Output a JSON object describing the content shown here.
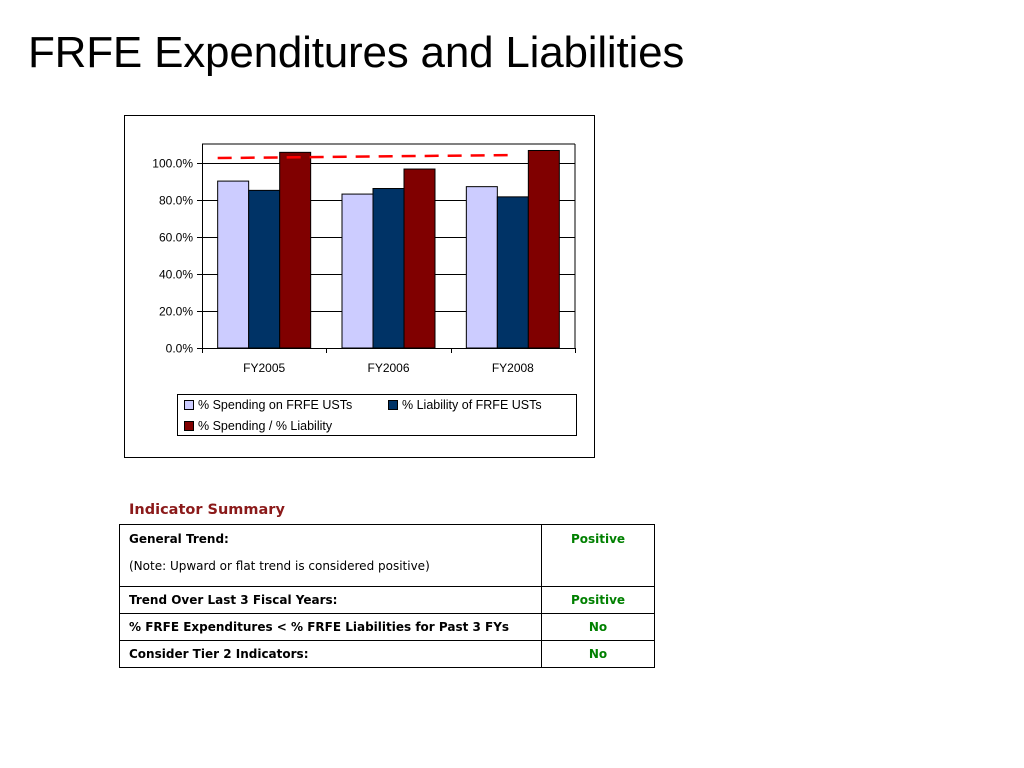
{
  "slide": {
    "title": "FRFE Expenditures and Liabilities"
  },
  "chart_data": {
    "type": "bar",
    "categories": [
      "FY2005",
      "FY2006",
      "FY2008"
    ],
    "series": [
      {
        "name": "% Spending on FRFE USTs",
        "values": [
          90.0,
          83.0,
          87.0
        ],
        "color": "#ccccff"
      },
      {
        "name": "% Liability of FRFE USTs",
        "values": [
          85.0,
          86.0,
          81.5
        ],
        "color": "#003366"
      },
      {
        "name": "% Spending / % Liability",
        "values": [
          105.5,
          96.5,
          106.5
        ],
        "color": "#800000"
      }
    ],
    "reference_line": {
      "value": 103.5,
      "style": "dashed",
      "color": "#ff0000"
    },
    "ylim": [
      0,
      110
    ],
    "yticks": [
      "0.0%",
      "20.0%",
      "40.0%",
      "60.0%",
      "80.0%",
      "100.0%"
    ],
    "ytick_values": [
      0,
      20,
      40,
      60,
      80,
      100
    ],
    "grid": true,
    "legend_position": "bottom",
    "xlabel": "",
    "ylabel": ""
  },
  "summary": {
    "heading": "Indicator Summary",
    "rows": [
      {
        "label": "General Trend:",
        "note": "(Note: Upward or flat trend is considered positive)",
        "value": "Positive"
      },
      {
        "label": "Trend Over Last 3 Fiscal Years:",
        "value": "Positive"
      },
      {
        "label": "% FRFE Expenditures < % FRFE Liabilities for Past 3 FYs",
        "value": "No"
      },
      {
        "label": "Consider Tier 2 Indicators:",
        "value": "No"
      }
    ]
  }
}
